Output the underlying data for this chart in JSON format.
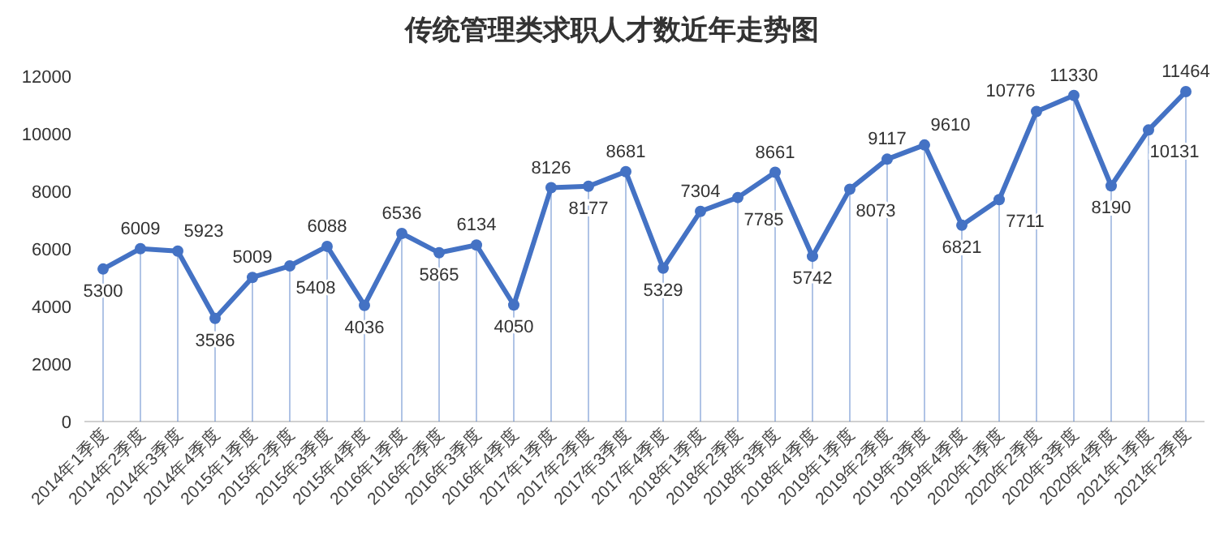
{
  "chart_data": {
    "type": "line",
    "title": "传统管理类求职人才数近年走势图",
    "categories": [
      "2014年1季度",
      "2014年2季度",
      "2014年3季度",
      "2014年4季度",
      "2015年1季度",
      "2015年2季度",
      "2015年3季度",
      "2015年4季度",
      "2016年1季度",
      "2016年2季度",
      "2016年3季度",
      "2016年4季度",
      "2017年1季度",
      "2017年2季度",
      "2017年3季度",
      "2017年4季度",
      "2018年1季度",
      "2018年2季度",
      "2018年3季度",
      "2018年4季度",
      "2019年1季度",
      "2019年2季度",
      "2019年3季度",
      "2019年4季度",
      "2020年1季度",
      "2020年2季度",
      "2020年3季度",
      "2020年4季度",
      "2021年1季度",
      "2021年2季度"
    ],
    "values": [
      5300,
      6009,
      5923,
      3586,
      5009,
      5408,
      6088,
      4036,
      6536,
      5865,
      6134,
      4050,
      8126,
      8177,
      8681,
      5329,
      7304,
      7785,
      8661,
      5742,
      8073,
      9117,
      9610,
      6821,
      7711,
      10776,
      11330,
      8190,
      10131,
      11464
    ],
    "color": "#4472c4",
    "marker": "circle",
    "data_labels": true,
    "grid": "x",
    "ylim": [
      0,
      12000
    ],
    "yticks": [
      0,
      2000,
      4000,
      6000,
      8000,
      10000,
      12000
    ]
  }
}
